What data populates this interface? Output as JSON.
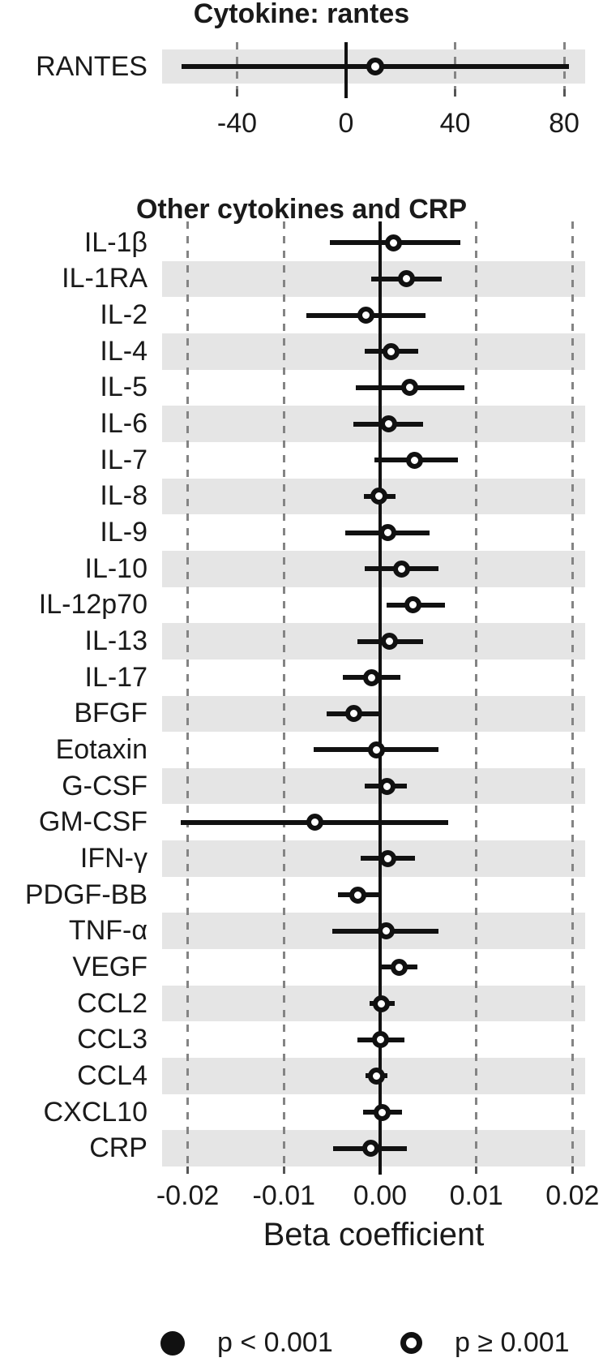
{
  "colors": {
    "ink": "#111111",
    "stripe": "#e5e5e5",
    "gridline": "#848484",
    "tick": "#555555",
    "marker_fill": "#ffffff",
    "background": "#ffffff"
  },
  "legend": {
    "items": [
      {
        "symbol": "filled-circle",
        "label": "p < 0.001"
      },
      {
        "symbol": "open-circle",
        "label": "p ≥ 0.001"
      }
    ]
  },
  "chart_data": [
    {
      "type": "scatter",
      "subtype": "forest-plot",
      "title": "Cytokine: rantes",
      "xlabel": "",
      "ylabel": "",
      "x_ticks": [
        -40,
        0,
        40,
        80
      ],
      "x_tick_labels": [
        "-40",
        "0",
        "40",
        "80"
      ],
      "xlim": [
        -67.5,
        88
      ],
      "grid": "dashed-vertical",
      "marker_style": "open-circle-if-p-ge-0.001",
      "rows": [
        {
          "label": "RANTES",
          "estimate": 10.7,
          "ci_low": -60.3,
          "ci_high": 81.7,
          "p_lt_001": false,
          "shaded": true
        }
      ]
    },
    {
      "type": "scatter",
      "subtype": "forest-plot",
      "title": "Other cytokines and CRP",
      "xlabel": "Beta coefficient",
      "ylabel": "",
      "x_ticks": [
        -0.02,
        -0.01,
        0,
        0.01,
        0.02
      ],
      "x_tick_labels": [
        "-0.02",
        "-0.01",
        "0.00",
        "0.01",
        "0.02"
      ],
      "xlim": [
        -0.0228,
        0.0213
      ],
      "grid": "dashed-vertical",
      "marker_style": "open-circle-if-p-ge-0.001",
      "rows": [
        {
          "label": "IL-1β",
          "estimate": 0.0014,
          "ci_low": -0.0052,
          "ci_high": 0.0083,
          "p_lt_001": false,
          "shaded": false
        },
        {
          "label": "IL-1RA",
          "estimate": 0.0027,
          "ci_low": -0.0009,
          "ci_high": 0.0064,
          "p_lt_001": false,
          "shaded": true
        },
        {
          "label": "IL-2",
          "estimate": -0.0015,
          "ci_low": -0.0077,
          "ci_high": 0.0047,
          "p_lt_001": false,
          "shaded": false
        },
        {
          "label": "IL-4",
          "estimate": 0.0011,
          "ci_low": -0.0016,
          "ci_high": 0.004,
          "p_lt_001": false,
          "shaded": true
        },
        {
          "label": "IL-5",
          "estimate": 0.0031,
          "ci_low": -0.0025,
          "ci_high": 0.0088,
          "p_lt_001": false,
          "shaded": false
        },
        {
          "label": "IL-6",
          "estimate": 0.0009,
          "ci_low": -0.0028,
          "ci_high": 0.0045,
          "p_lt_001": false,
          "shaded": true
        },
        {
          "label": "IL-7",
          "estimate": 0.0036,
          "ci_low": -0.0006,
          "ci_high": 0.0081,
          "p_lt_001": false,
          "shaded": false
        },
        {
          "label": "IL-8",
          "estimate": -0.0001,
          "ci_low": -0.0017,
          "ci_high": 0.0016,
          "p_lt_001": false,
          "shaded": true
        },
        {
          "label": "IL-9",
          "estimate": 0.0008,
          "ci_low": -0.0036,
          "ci_high": 0.0051,
          "p_lt_001": false,
          "shaded": false
        },
        {
          "label": "IL-10",
          "estimate": 0.0022,
          "ci_low": -0.0016,
          "ci_high": 0.0061,
          "p_lt_001": false,
          "shaded": true
        },
        {
          "label": "IL-12p70",
          "estimate": 0.0034,
          "ci_low": 0.0007,
          "ci_high": 0.0067,
          "p_lt_001": false,
          "shaded": false
        },
        {
          "label": "IL-13",
          "estimate": 0.001,
          "ci_low": -0.0024,
          "ci_high": 0.0045,
          "p_lt_001": false,
          "shaded": true
        },
        {
          "label": "IL-17",
          "estimate": -0.0009,
          "ci_low": -0.0039,
          "ci_high": 0.0021,
          "p_lt_001": false,
          "shaded": false
        },
        {
          "label": "BFGF",
          "estimate": -0.0027,
          "ci_low": -0.0056,
          "ci_high": 0.0001,
          "p_lt_001": false,
          "shaded": true
        },
        {
          "label": "Eotaxin",
          "estimate": -0.0004,
          "ci_low": -0.0069,
          "ci_high": 0.0061,
          "p_lt_001": false,
          "shaded": false
        },
        {
          "label": "G-CSF",
          "estimate": 0.0007,
          "ci_low": -0.0016,
          "ci_high": 0.0028,
          "p_lt_001": false,
          "shaded": true
        },
        {
          "label": "GM-CSF",
          "estimate": -0.0068,
          "ci_low": -0.0207,
          "ci_high": 0.0071,
          "p_lt_001": false,
          "shaded": false
        },
        {
          "label": "IFN-γ",
          "estimate": 0.0008,
          "ci_low": -0.002,
          "ci_high": 0.0036,
          "p_lt_001": false,
          "shaded": true
        },
        {
          "label": "PDGF-BB",
          "estimate": -0.0023,
          "ci_low": -0.0044,
          "ci_high": -0.0002,
          "p_lt_001": false,
          "shaded": false
        },
        {
          "label": "TNF-α",
          "estimate": 0.0006,
          "ci_low": -0.005,
          "ci_high": 0.0061,
          "p_lt_001": false,
          "shaded": true
        },
        {
          "label": "VEGF",
          "estimate": 0.002,
          "ci_low": 0.0,
          "ci_high": 0.0039,
          "p_lt_001": false,
          "shaded": false
        },
        {
          "label": "CCL2",
          "estimate": 0.0001,
          "ci_low": -0.0011,
          "ci_high": 0.0015,
          "p_lt_001": false,
          "shaded": true
        },
        {
          "label": "CCL3",
          "estimate": 0.0,
          "ci_low": -0.0024,
          "ci_high": 0.0025,
          "p_lt_001": false,
          "shaded": false
        },
        {
          "label": "CCL4",
          "estimate": -0.0004,
          "ci_low": -0.0015,
          "ci_high": 0.0008,
          "p_lt_001": false,
          "shaded": true
        },
        {
          "label": "CXCL10",
          "estimate": 0.0002,
          "ci_low": -0.0018,
          "ci_high": 0.0023,
          "p_lt_001": false,
          "shaded": false
        },
        {
          "label": "CRP",
          "estimate": -0.001,
          "ci_low": -0.0049,
          "ci_high": 0.0028,
          "p_lt_001": false,
          "shaded": true
        }
      ]
    }
  ]
}
